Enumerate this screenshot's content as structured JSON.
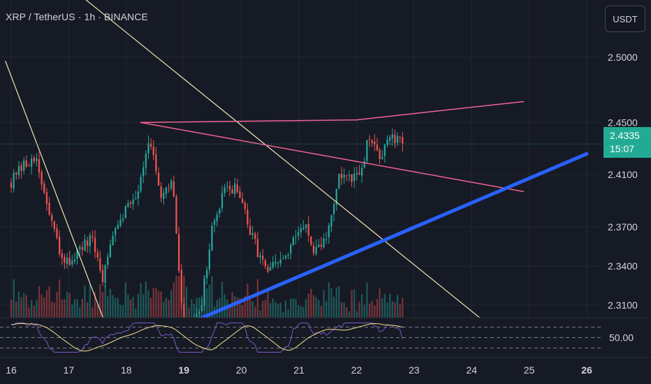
{
  "header": {
    "symbol_line": "XRP / TetherUS · 1h · BINANCE",
    "currency_button": "USDT"
  },
  "last_price": {
    "value": "2.4335",
    "countdown": "15:07",
    "color": "#22ab94"
  },
  "colors": {
    "background": "#161a25",
    "up": "#26a69a",
    "down": "#ef5350",
    "grid": "#232734",
    "trendline_yellow": "#f2e6b3",
    "triangle_pink": "#f06292",
    "support_blue": "#2962ff",
    "rsi_line": "#7e57c2",
    "rsi_ma": "#f5e08a"
  },
  "chart_data": {
    "type": "candlestick",
    "title": "XRP / TetherUS · 1h · BINANCE",
    "y_axis": {
      "ticks": [
        "2.5000",
        "2.4500",
        "2.4100",
        "2.3700",
        "2.3400",
        "2.3100"
      ],
      "ylim": [
        2.305,
        2.51
      ]
    },
    "x_axis": {
      "ticks": [
        "16",
        "17",
        "18",
        "19",
        "20",
        "21",
        "22",
        "23",
        "24",
        "25",
        "26"
      ]
    },
    "candle_timeframe": "1h",
    "approx_candle_count": 155,
    "close_path": [
      [
        16.0,
        2.405
      ],
      [
        16.4,
        2.425
      ],
      [
        16.9,
        2.34
      ],
      [
        17.4,
        2.36
      ],
      [
        17.6,
        2.33
      ],
      [
        17.8,
        2.372
      ],
      [
        18.2,
        2.398
      ],
      [
        18.4,
        2.441
      ],
      [
        18.6,
        2.388
      ],
      [
        18.8,
        2.405
      ],
      [
        19.0,
        2.29
      ],
      [
        19.3,
        2.31
      ],
      [
        19.5,
        2.37
      ],
      [
        19.7,
        2.396
      ],
      [
        19.9,
        2.402
      ],
      [
        20.2,
        2.36
      ],
      [
        20.45,
        2.335
      ],
      [
        20.8,
        2.348
      ],
      [
        21.1,
        2.376
      ],
      [
        21.25,
        2.346
      ],
      [
        21.5,
        2.365
      ],
      [
        21.7,
        2.41
      ],
      [
        21.9,
        2.405
      ],
      [
        22.1,
        2.412
      ],
      [
        22.2,
        2.437
      ],
      [
        22.4,
        2.425
      ],
      [
        22.6,
        2.438
      ],
      [
        22.8,
        2.4335
      ]
    ],
    "last_price": 2.4335,
    "volume": "histogram at bottom, colored by candle direction",
    "drawings": [
      {
        "name": "descending-trendline-left",
        "color": "yellow",
        "points": [
          [
            15.9,
            2.497
          ],
          [
            17.6,
            2.3
          ]
        ]
      },
      {
        "name": "descending-trendline-main",
        "color": "yellow",
        "points": [
          [
            16.85,
            2.56
          ],
          [
            24.15,
            2.3
          ]
        ]
      },
      {
        "name": "triangle-upper-line",
        "color": "pink",
        "points": [
          [
            18.25,
            2.45
          ],
          [
            22.0,
            2.452
          ],
          [
            24.9,
            2.466
          ]
        ]
      },
      {
        "name": "triangle-lower-line",
        "color": "pink",
        "points": [
          [
            18.25,
            2.45
          ],
          [
            24.9,
            2.397
          ]
        ]
      },
      {
        "name": "ascending-support-line",
        "color": "blue",
        "points": [
          [
            19.3,
            2.3
          ],
          [
            26.0,
            2.426
          ]
        ]
      }
    ],
    "rsi_panel": {
      "label": "50.00",
      "level": 50,
      "bands": [
        30,
        50,
        70
      ]
    }
  }
}
